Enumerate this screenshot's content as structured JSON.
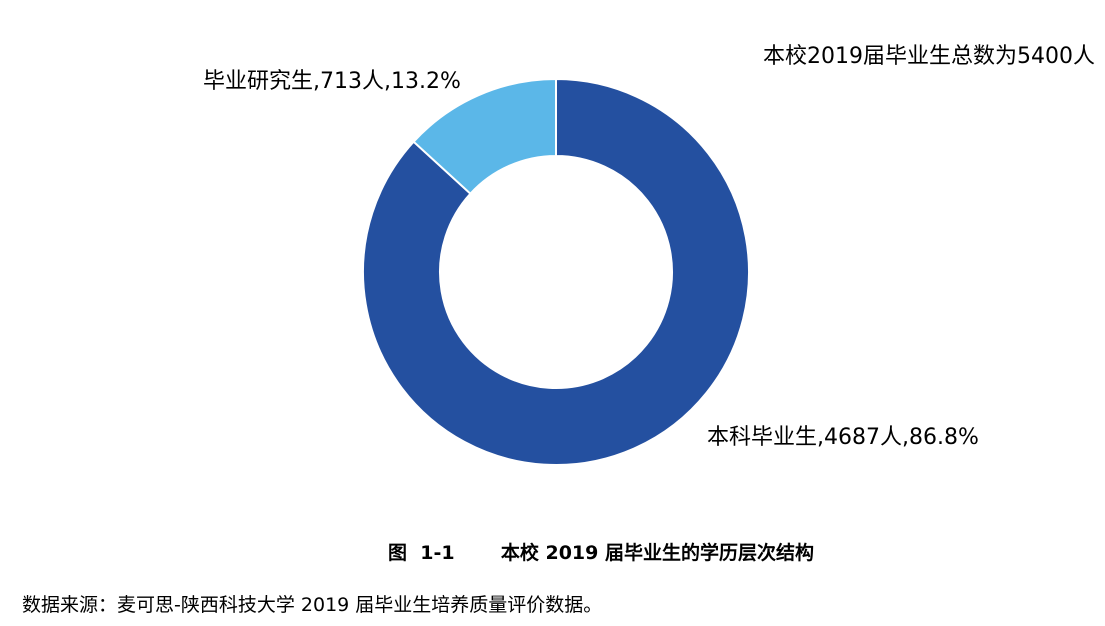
{
  "chart_data": {
    "type": "pie",
    "donut": true,
    "subtitle": "本校2019届毕业生总数为5400人",
    "slices": [
      {
        "name": "本科毕业生",
        "value": 4687,
        "percent": 86.8,
        "label": "本科毕业生,4687人,86.8%",
        "color": "#2450A0"
      },
      {
        "name": "毕业研究生",
        "value": 713,
        "percent": 13.2,
        "label": "毕业研究生,713人,13.2%",
        "color": "#5BB7E8"
      }
    ]
  },
  "figure": {
    "number": "图  1-1",
    "title": "本校 2019 届毕业生的学历层次结构"
  },
  "source": "数据来源：麦可思-陕西科技大学 2019 届毕业生培养质量评价数据。"
}
